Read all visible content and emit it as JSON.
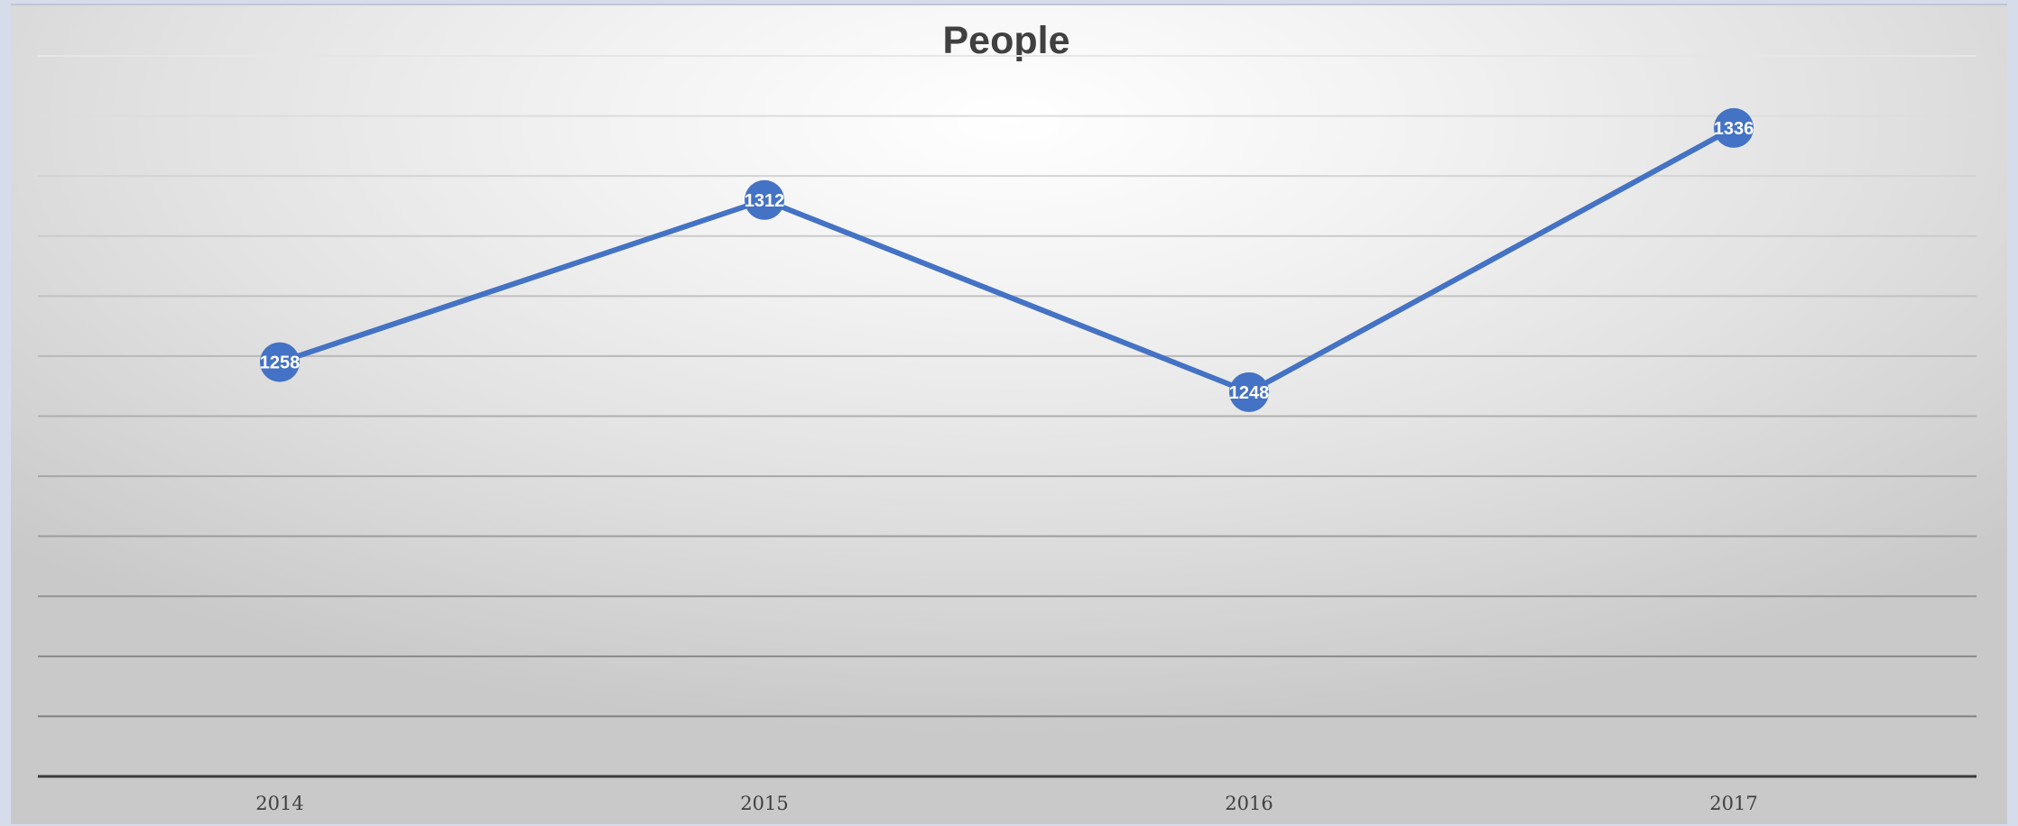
{
  "chart_data": {
    "type": "line",
    "title": "People",
    "xlabel": "",
    "ylabel": "",
    "categories": [
      "2014",
      "2015",
      "2016",
      "2017"
    ],
    "series": [
      {
        "values": [
          1258,
          1312,
          1248,
          1336
        ]
      }
    ],
    "ylim": [
      1120,
      1360
    ],
    "grid_step": 20,
    "y_tick_labels_shown": false,
    "data_labels": true,
    "legend": "none",
    "grid": true,
    "line_color": "#4472c4",
    "marker_color": "#4472c4",
    "data_label_color": "#ffffff"
  }
}
